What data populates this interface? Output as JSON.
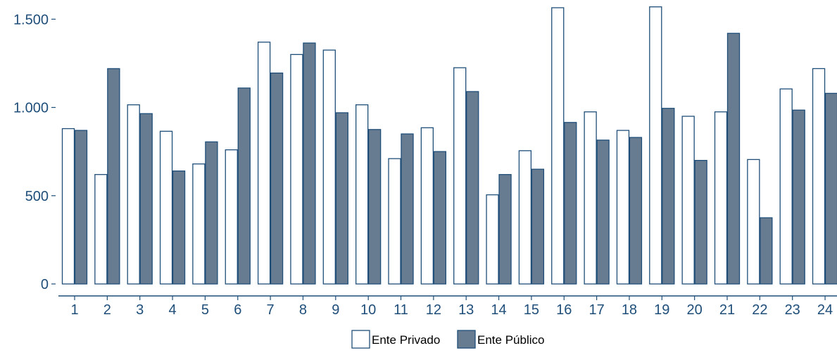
{
  "chart_data": {
    "type": "bar",
    "categories": [
      "1",
      "2",
      "3",
      "4",
      "5",
      "6",
      "7",
      "8",
      "9",
      "10",
      "11",
      "12",
      "13",
      "14",
      "15",
      "16",
      "17",
      "18",
      "19",
      "20",
      "21",
      "22",
      "23",
      "24"
    ],
    "series": [
      {
        "name": "Ente Privado",
        "color": "#ffffff",
        "stroke": "#1f4e79",
        "values": [
          880,
          620,
          1015,
          865,
          680,
          760,
          1370,
          1300,
          1325,
          1015,
          710,
          885,
          1225,
          505,
          755,
          1565,
          975,
          870,
          1570,
          950,
          975,
          705,
          1105,
          1220
        ]
      },
      {
        "name": "Ente Público",
        "color": "#687c91",
        "stroke": "#1f4e79",
        "values": [
          870,
          1220,
          965,
          640,
          805,
          1110,
          1195,
          1365,
          970,
          875,
          850,
          750,
          1090,
          620,
          650,
          915,
          815,
          830,
          995,
          700,
          1420,
          375,
          985,
          1080
        ]
      }
    ],
    "y_ticks": [
      {
        "value": 0,
        "label": "0"
      },
      {
        "value": 500,
        "label": "500"
      },
      {
        "value": 1000,
        "label": "1.000"
      },
      {
        "value": 1500,
        "label": "1.500"
      }
    ],
    "ylim": [
      0,
      1580
    ],
    "legend_position": "bottom",
    "grid": false,
    "title": "",
    "xlabel": "",
    "ylabel": ""
  }
}
